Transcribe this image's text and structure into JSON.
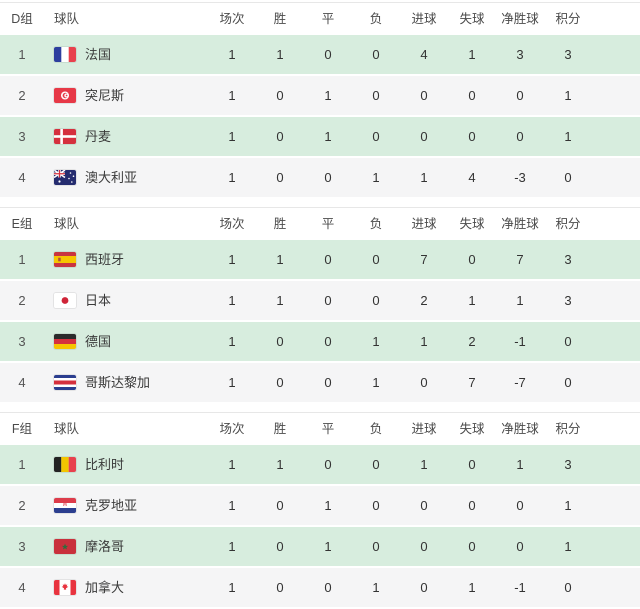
{
  "colors": {
    "row_green": "#d7edde",
    "row_gray": "#f5f5f6",
    "header_bg": "#ffffff",
    "table_border": "#e7e7e7",
    "text": "#333333",
    "header_text": "#4a4a4a"
  },
  "columns": {
    "team": "球队",
    "stats": [
      "场次",
      "胜",
      "平",
      "负",
      "进球",
      "失球",
      "净胜球",
      "积分"
    ]
  },
  "groups": [
    {
      "label": "D组",
      "teams": [
        {
          "rank": "1",
          "flag": "france-flag-icon",
          "name": "法国",
          "stats": [
            "1",
            "1",
            "0",
            "0",
            "4",
            "1",
            "3",
            "3"
          ]
        },
        {
          "rank": "2",
          "flag": "tunisia-flag-icon",
          "name": "突尼斯",
          "stats": [
            "1",
            "0",
            "1",
            "0",
            "0",
            "0",
            "0",
            "1"
          ]
        },
        {
          "rank": "3",
          "flag": "denmark-flag-icon",
          "name": "丹麦",
          "stats": [
            "1",
            "0",
            "1",
            "0",
            "0",
            "0",
            "0",
            "1"
          ]
        },
        {
          "rank": "4",
          "flag": "australia-flag-icon",
          "name": "澳大利亚",
          "stats": [
            "1",
            "0",
            "0",
            "1",
            "1",
            "4",
            "-3",
            "0"
          ]
        }
      ]
    },
    {
      "label": "E组",
      "teams": [
        {
          "rank": "1",
          "flag": "spain-flag-icon",
          "name": "西班牙",
          "stats": [
            "1",
            "1",
            "0",
            "0",
            "7",
            "0",
            "7",
            "3"
          ]
        },
        {
          "rank": "2",
          "flag": "japan-flag-icon",
          "name": "日本",
          "stats": [
            "1",
            "1",
            "0",
            "0",
            "2",
            "1",
            "1",
            "3"
          ]
        },
        {
          "rank": "3",
          "flag": "germany-flag-icon",
          "name": "德国",
          "stats": [
            "1",
            "0",
            "0",
            "1",
            "1",
            "2",
            "-1",
            "0"
          ]
        },
        {
          "rank": "4",
          "flag": "costa-rica-flag-icon",
          "name": "哥斯达黎加",
          "stats": [
            "1",
            "0",
            "0",
            "1",
            "0",
            "7",
            "-7",
            "0"
          ]
        }
      ]
    },
    {
      "label": "F组",
      "teams": [
        {
          "rank": "1",
          "flag": "belgium-flag-icon",
          "name": "比利时",
          "stats": [
            "1",
            "1",
            "0",
            "0",
            "1",
            "0",
            "1",
            "3"
          ]
        },
        {
          "rank": "2",
          "flag": "croatia-flag-icon",
          "name": "克罗地亚",
          "stats": [
            "1",
            "0",
            "1",
            "0",
            "0",
            "0",
            "0",
            "1"
          ]
        },
        {
          "rank": "3",
          "flag": "morocco-flag-icon",
          "name": "摩洛哥",
          "stats": [
            "1",
            "0",
            "1",
            "0",
            "0",
            "0",
            "0",
            "1"
          ]
        },
        {
          "rank": "4",
          "flag": "canada-flag-icon",
          "name": "加拿大",
          "stats": [
            "1",
            "0",
            "0",
            "1",
            "0",
            "1",
            "-1",
            "0"
          ]
        }
      ]
    }
  ]
}
